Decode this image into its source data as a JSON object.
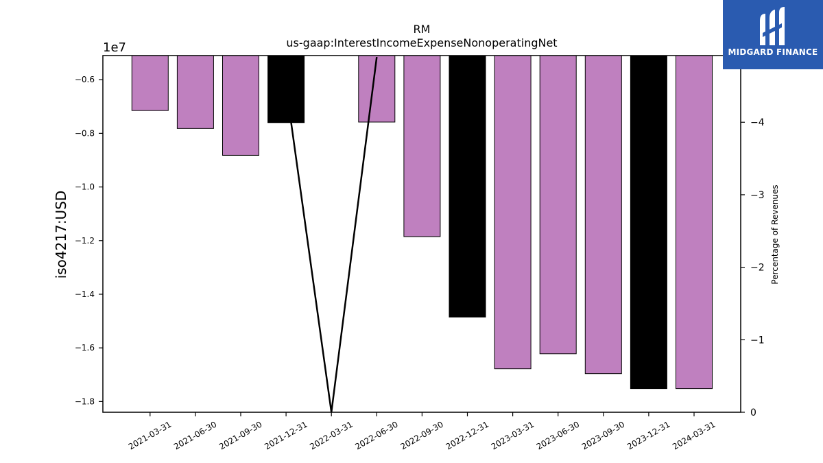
{
  "chart_data": {
    "type": "bar",
    "title": "RM",
    "subtitle": "us-gaap:InterestIncomeExpenseNonoperatingNet",
    "ylabel": "iso4217:USD",
    "y_offset_label": "1e7",
    "y2label": "Percentage of Revenues",
    "categories": [
      "2021-03-31",
      "2021-06-30",
      "2021-09-30",
      "2021-12-31",
      "2022-03-31",
      "2022-06-30",
      "2022-09-30",
      "2022-12-31",
      "2023-03-31",
      "2023-06-30",
      "2023-09-30",
      "2023-12-31",
      "2024-03-31"
    ],
    "values": [
      -7150000,
      -7820000,
      -8820000,
      -7600000,
      null,
      -7580000,
      -11850000,
      -14850000,
      -16780000,
      -16220000,
      -16960000,
      -17520000,
      -17520000
    ],
    "bar_colors": [
      "#bf80bf",
      "#bf80bf",
      "#bf80bf",
      "#000000",
      null,
      "#bf80bf",
      "#bf80bf",
      "#000000",
      "#bf80bf",
      "#bf80bf",
      "#bf80bf",
      "#000000",
      "#bf80bf"
    ],
    "ylim": [
      -18400000,
      -5100000
    ],
    "yticks": [
      -6000000,
      -8000000,
      -10000000,
      -12000000,
      -14000000,
      -16000000,
      -18000000
    ],
    "ytick_labels": [
      "−0.6",
      "−0.8",
      "−1.0",
      "−1.2",
      "−1.4",
      "−1.6",
      "−1.8"
    ],
    "line_series": {
      "x_categories": [
        "2021-12-31",
        "2022-03-31",
        "2022-06-30"
      ],
      "values": [
        -4.5,
        0,
        -4.9
      ]
    },
    "y2lim": [
      0,
      -4.92
    ],
    "y2ticks": [
      -4,
      -3,
      -2,
      -1,
      0
    ],
    "y2tick_labels": [
      "−4",
      "−3",
      "−2",
      "−1",
      "0"
    ],
    "colors": {
      "purple": "#bf80bf",
      "black": "#000000"
    }
  },
  "logo": {
    "text": "MIDGARD FINANCE",
    "icon": "midgard-logo-icon",
    "color": "#2a5bb0"
  }
}
